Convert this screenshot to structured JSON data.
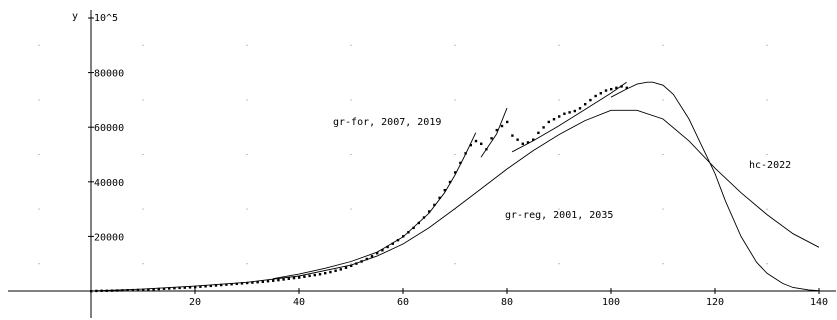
{
  "chart_data": {
    "type": "scatter",
    "title": "",
    "xlabel": "",
    "ylabel": "y",
    "y_multiplier_label": "10^5",
    "xlim": [
      -15,
      141
    ],
    "ylim": [
      -10000,
      100000
    ],
    "grid": "dotted",
    "x_ticks": [
      20,
      40,
      60,
      80,
      100,
      120,
      140
    ],
    "y_ticks": [
      20000,
      40000,
      60000,
      80000
    ],
    "x_tick_labels": [
      "20",
      "40",
      "60",
      "80",
      "100",
      "120",
      "140"
    ],
    "y_tick_labels": [
      "20000",
      "40000",
      "60000",
      "80000"
    ],
    "series": [
      {
        "kind": "points",
        "x": [
          0,
          1,
          2,
          3,
          4,
          5,
          6,
          7,
          8,
          9,
          10,
          11,
          12,
          13,
          14,
          15,
          16,
          17,
          18,
          19,
          20,
          21,
          22,
          23,
          24,
          25,
          26,
          27,
          28,
          29,
          30,
          31,
          32,
          33,
          34,
          35,
          36,
          37,
          38,
          39,
          40,
          41,
          42,
          43,
          44,
          45,
          46,
          47,
          48,
          49,
          50,
          51,
          52,
          53,
          54,
          55,
          56,
          57,
          58,
          59,
          60,
          61,
          62,
          63,
          64,
          65,
          66,
          67,
          68,
          69,
          70,
          71,
          72,
          73,
          74,
          75,
          76,
          77,
          78,
          79,
          80,
          81,
          82,
          83,
          84,
          85,
          86,
          87,
          88,
          89,
          90,
          91,
          92,
          93,
          94,
          95,
          96,
          97,
          98,
          99,
          100,
          101,
          102,
          103
        ],
        "y": [
          0,
          100,
          150,
          150,
          200,
          250,
          300,
          350,
          400,
          450,
          500,
          600,
          700,
          800,
          900,
          1000,
          1100,
          1200,
          1300,
          1400,
          1500,
          1650,
          1800,
          1950,
          2100,
          2250,
          2400,
          2550,
          2700,
          2850,
          3000,
          3150,
          3300,
          3450,
          3650,
          3850,
          4050,
          4300,
          4550,
          4800,
          5000,
          5300,
          5600,
          5900,
          6200,
          6600,
          7000,
          7500,
          8000,
          8600,
          9300,
          10100,
          10900,
          11800,
          12800,
          13900,
          15000,
          16200,
          17400,
          18700,
          20100,
          21600,
          23200,
          25000,
          27000,
          29200,
          31600,
          34200,
          37000,
          40000,
          43500,
          47000,
          50500,
          53500,
          55000,
          54000,
          52000,
          56000,
          59000,
          60500,
          62000,
          57000,
          55500,
          54000,
          54500,
          55500,
          58000,
          60000,
          62000,
          63000,
          64000,
          65000,
          65500,
          66000,
          67000,
          68500,
          70000,
          71500,
          72500,
          73500,
          74000,
          74500,
          75000,
          74500
        ]
      },
      {
        "kind": "curve",
        "label": "gr-for, 2007, 2019",
        "x": [
          35,
          40,
          45,
          50,
          55,
          60,
          65,
          68,
          70,
          72,
          74
        ],
        "y": [
          4500,
          6200,
          8300,
          10800,
          14200,
          19800,
          28500,
          36000,
          42500,
          50000,
          58000
        ]
      },
      {
        "kind": "curve",
        "label": "",
        "x": [
          75,
          78,
          80
        ],
        "y": [
          49000,
          57500,
          67000
        ]
      },
      {
        "kind": "curve",
        "label": "",
        "x": [
          81,
          85,
          90,
          95,
          100,
          103
        ],
        "y": [
          51000,
          55000,
          60500,
          66500,
          72500,
          76500
        ]
      },
      {
        "kind": "curve",
        "label": "gr-reg, 2001, 2035",
        "x": [
          0,
          10,
          20,
          30,
          40,
          50,
          55,
          60,
          65,
          70,
          75,
          80,
          85,
          90,
          95,
          100,
          105,
          110,
          115,
          120,
          125,
          130,
          135,
          140
        ],
        "y": [
          0,
          700,
          1800,
          3200,
          5500,
          9500,
          12800,
          17200,
          23200,
          30200,
          37400,
          44700,
          51400,
          57300,
          62400,
          66200,
          66200,
          63000,
          55000,
          45000,
          36000,
          28000,
          21000,
          16000
        ]
      },
      {
        "kind": "curve",
        "label": "hc-2022",
        "x": [
          100,
          103,
          105,
          107,
          108,
          110,
          112,
          115,
          117,
          120,
          122,
          125,
          128,
          130,
          133,
          135,
          138,
          140
        ],
        "y": [
          71000,
          74000,
          75800,
          76500,
          76500,
          75400,
          72000,
          63000,
          55000,
          43000,
          33000,
          20000,
          10500,
          6500,
          2800,
          1300,
          400,
          100
        ]
      }
    ],
    "annotations": [
      "gr-for, 2007, 2019",
      "gr-reg, 2001, 2035",
      "hc-2022"
    ]
  }
}
